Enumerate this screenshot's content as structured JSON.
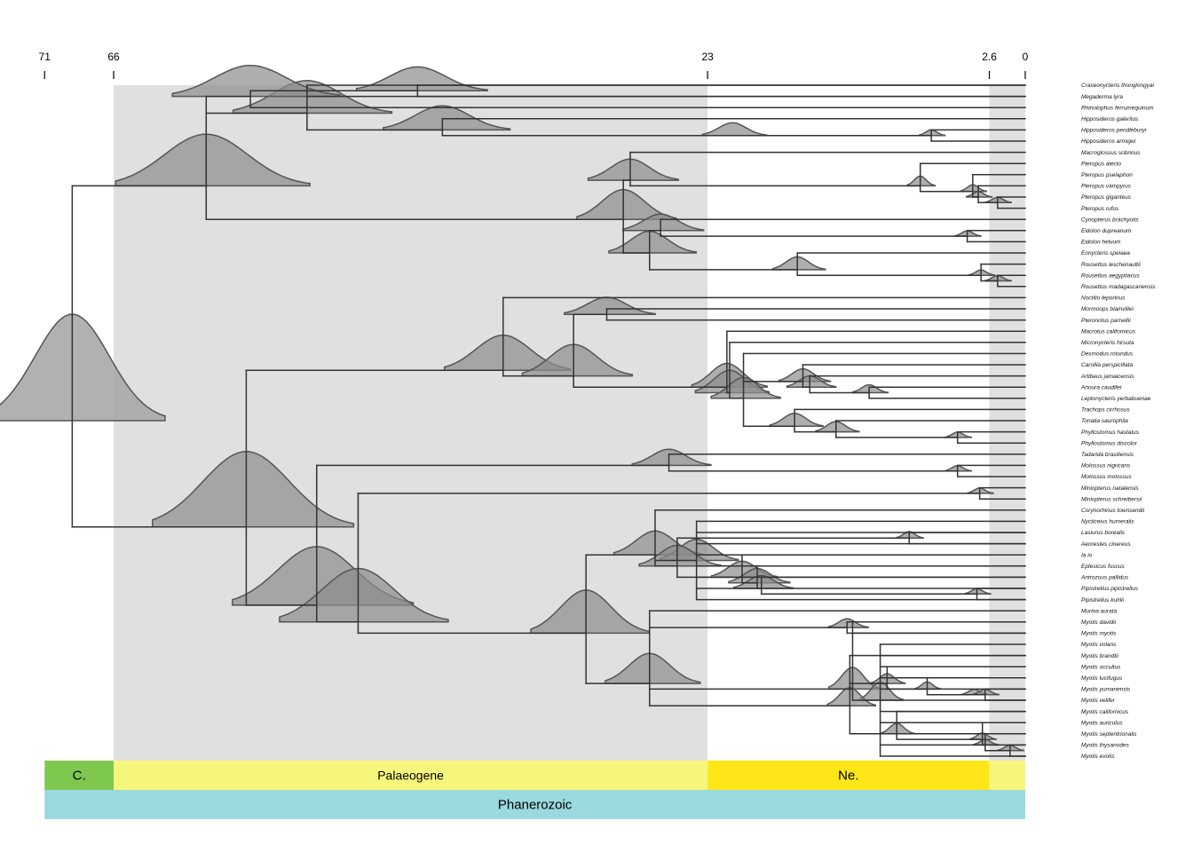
{
  "figure": {
    "time_ticks": [
      71,
      66,
      23,
      2.6,
      0
    ],
    "tips": [
      "Craseonycteris thonglongyai",
      "Megaderma lyra",
      "Rhinolophus ferrumequinum",
      "Hipposideros galeritus",
      "Hipposideros pendleburyi",
      "Hipposideros armiger",
      "Macroglossus sobrinus",
      "Pteropus alecto",
      "Pteropus pselaphon",
      "Pteropus vampyrus",
      "Pteropus giganteus",
      "Pteropus rufus",
      "Cynopterus brachyotis",
      "Eidolon dupreanum",
      "Eidolon helvum",
      "Eonycteris spelaea",
      "Rousettus leschenaultii",
      "Rousettus aegyptiacus",
      "Rousettus madagascariensis",
      "Noctilio leporinus",
      "Mormoops blainvillei",
      "Pteronotus parnellii",
      "Macrotus californicus",
      "Micronycteris hirsuta",
      "Desmodus rotundus",
      "Carollia perspicillata",
      "Artibeus jamaicensis",
      "Anoura caudifer",
      "Leptonycteris yerbabuenae",
      "Trachops cirrhosus",
      "Tonatia saurophila",
      "Phyllostomus hastatus",
      "Phyllostomus discolor",
      "Tadarida brasiliensis",
      "Molossus nigricans",
      "Molossus molossus",
      "Miniopterus natalensis",
      "Miniopterus schreibersii",
      "Corynorhinus townsendii",
      "Nycticeius humeralis",
      "Lasiurus borealis",
      "Aeorestes cinereus",
      "Ia io",
      "Eptesicus fuscus",
      "Antrozous pallidus",
      "Pipistrellus pipistrellus",
      "Pipistrellus kuhlii",
      "Murina aurata",
      "Myotis davidii",
      "Myotis myotis",
      "Myotis volans",
      "Myotis brandtii",
      "Myotis occultus",
      "Myotis lucifugus",
      "Myotis yumanensis",
      "Myotis velifer",
      "Myotis californicus",
      "Myotis auriculus",
      "Myotis septentrionalis",
      "Myotis thysanodes",
      "Myotis evotis"
    ],
    "periods": [
      {
        "label": "C.",
        "start": 71,
        "end": 66,
        "color": "#7ec850"
      },
      {
        "label": "Palaeogene",
        "start": 66,
        "end": 23,
        "color": "#f7f67c"
      },
      {
        "label": "Ne.",
        "start": 23,
        "end": 2.6,
        "color": "#ffe619"
      },
      {
        "label": "",
        "start": 2.6,
        "end": 0,
        "color": "#f7f67c"
      }
    ],
    "eon": {
      "label": "Phanerozoic",
      "start": 71,
      "end": 0,
      "color": "#9ad9de"
    },
    "colors": {
      "shade": "#e0e0e0",
      "branch": "#333333",
      "density_fill": "#8c8c8c",
      "root_density_fill": "#a8a8a8",
      "density_stroke": "#555555"
    },
    "clades": [
      {
        "age": 69,
        "first": 0,
        "last": 60
      },
      {
        "age": 59.3,
        "first": 0,
        "last": 18
      },
      {
        "age": 52,
        "first": 0,
        "last": 5
      },
      {
        "age": 56.1,
        "first": 0,
        "last": 2
      },
      {
        "age": 44,
        "first": 0,
        "last": 1
      },
      {
        "age": 42.2,
        "first": 3,
        "last": 5
      },
      {
        "age": 21.2,
        "first": 4,
        "last": 5
      },
      {
        "age": 6.8,
        "first": 4,
        "last": 5
      },
      {
        "age": 29.1,
        "first": 6,
        "last": 18
      },
      {
        "age": 28.6,
        "first": 6,
        "last": 11
      },
      {
        "age": 7.6,
        "first": 7,
        "last": 11
      },
      {
        "age": 3.8,
        "first": 8,
        "last": 11
      },
      {
        "age": 3.4,
        "first": 9,
        "last": 11
      },
      {
        "age": 2,
        "first": 10,
        "last": 11
      },
      {
        "age": 27.2,
        "first": 12,
        "last": 18
      },
      {
        "age": 26.4,
        "first": 12,
        "last": 14
      },
      {
        "age": 4.2,
        "first": 13,
        "last": 14
      },
      {
        "age": 16.5,
        "first": 15,
        "last": 18
      },
      {
        "age": 3.2,
        "first": 16,
        "last": 18
      },
      {
        "age": 2,
        "first": 17,
        "last": 18
      },
      {
        "age": 56.4,
        "first": 19,
        "last": 60
      },
      {
        "age": 37.8,
        "first": 19,
        "last": 32
      },
      {
        "age": 32.7,
        "first": 20,
        "last": 32
      },
      {
        "age": 30.3,
        "first": 20,
        "last": 21
      },
      {
        "age": 21.6,
        "first": 22,
        "last": 32
      },
      {
        "age": 21.4,
        "first": 23,
        "last": 32
      },
      {
        "age": 20.4,
        "first": 24,
        "last": 32
      },
      {
        "age": 16.1,
        "first": 25,
        "last": 28
      },
      {
        "age": 15.6,
        "first": 26,
        "last": 28
      },
      {
        "age": 11.3,
        "first": 27,
        "last": 28
      },
      {
        "age": 16.7,
        "first": 29,
        "last": 32
      },
      {
        "age": 13.7,
        "first": 30,
        "last": 32
      },
      {
        "age": 4.9,
        "first": 31,
        "last": 32
      },
      {
        "age": 51.3,
        "first": 33,
        "last": 60
      },
      {
        "age": 25.8,
        "first": 33,
        "last": 35
      },
      {
        "age": 4.9,
        "first": 34,
        "last": 35
      },
      {
        "age": 48.3,
        "first": 36,
        "last": 60
      },
      {
        "age": 3.3,
        "first": 36,
        "last": 37
      },
      {
        "age": 31.8,
        "first": 38,
        "last": 60
      },
      {
        "age": 26.8,
        "first": 38,
        "last": 46
      },
      {
        "age": 23.8,
        "first": 39,
        "last": 46
      },
      {
        "age": 25.2,
        "first": 40,
        "last": 46
      },
      {
        "age": 8.4,
        "first": 40,
        "last": 41
      },
      {
        "age": 20.5,
        "first": 42,
        "last": 46
      },
      {
        "age": 19.4,
        "first": 43,
        "last": 46
      },
      {
        "age": 19.1,
        "first": 44,
        "last": 46
      },
      {
        "age": 3.5,
        "first": 45,
        "last": 46
      },
      {
        "age": 27.2,
        "first": 47,
        "last": 60
      },
      {
        "age": 12.9,
        "first": 48,
        "last": 49
      },
      {
        "age": 12.5,
        "first": 48,
        "last": 60
      },
      {
        "age": 10.5,
        "first": 50,
        "last": 60
      },
      {
        "age": 12.7,
        "first": 51,
        "last": 60
      },
      {
        "age": 10,
        "first": 52,
        "last": 55
      },
      {
        "age": 7.1,
        "first": 53,
        "last": 55
      },
      {
        "age": 3.7,
        "first": 54,
        "last": 55
      },
      {
        "age": 2.9,
        "first": 54,
        "last": 55
      },
      {
        "age": 9.3,
        "first": 56,
        "last": 60
      },
      {
        "age": 3.1,
        "first": 57,
        "last": 60
      },
      {
        "age": 2.9,
        "first": 58,
        "last": 60
      },
      {
        "age": 1.1,
        "first": 59,
        "last": 60
      }
    ]
  }
}
